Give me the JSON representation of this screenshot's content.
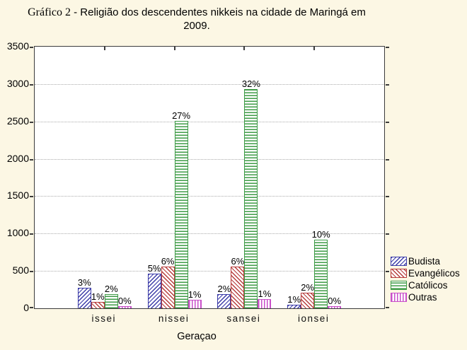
{
  "background_color": "#FCF7E4",
  "plot_background_color": "#FFFFFF",
  "axis_color": "#3b3b3b",
  "gridline_color": "#ababab",
  "chart_data": {
    "type": "bar",
    "title": {
      "prefix": "Gráfico 2",
      "line1_rest": " - Religião dos descendentes nikkeis na cidade de Maringá em",
      "line2": "2009."
    },
    "xlabel": "Geraçao",
    "ylabel": "",
    "categories": [
      "issei",
      "nissei",
      "sansei",
      "ionsei"
    ],
    "series": [
      {
        "name": "Budista",
        "color": "#3C3CA8",
        "pattern": "diag-up",
        "values": [
          270,
          465,
          190,
          50
        ],
        "labels": [
          "3%",
          "5%",
          "2%",
          "1%"
        ]
      },
      {
        "name": "Evangélicos",
        "color": "#B73D3D",
        "pattern": "diag-down",
        "values": [
          90,
          555,
          560,
          210
        ],
        "labels": [
          "1%",
          "6%",
          "6%",
          "2%"
        ]
      },
      {
        "name": "Católicos",
        "color": "#3E9B46",
        "pattern": "horizontal",
        "values": [
          190,
          2505,
          2930,
          915
        ],
        "labels": [
          "2%",
          "27%",
          "32%",
          "10%"
        ]
      },
      {
        "name": "Outras",
        "color": "#C94FC9",
        "pattern": "vertical",
        "values": [
          25,
          110,
          120,
          30
        ],
        "labels": [
          "0%",
          "1%",
          "1%",
          "0%"
        ]
      }
    ],
    "ylim": [
      0,
      3500
    ],
    "yticks": [
      0,
      500,
      1000,
      1500,
      2000,
      2500,
      3000,
      3500
    ],
    "grid": {
      "horizontal": true,
      "style": "dotted"
    },
    "legend_position": "right"
  }
}
